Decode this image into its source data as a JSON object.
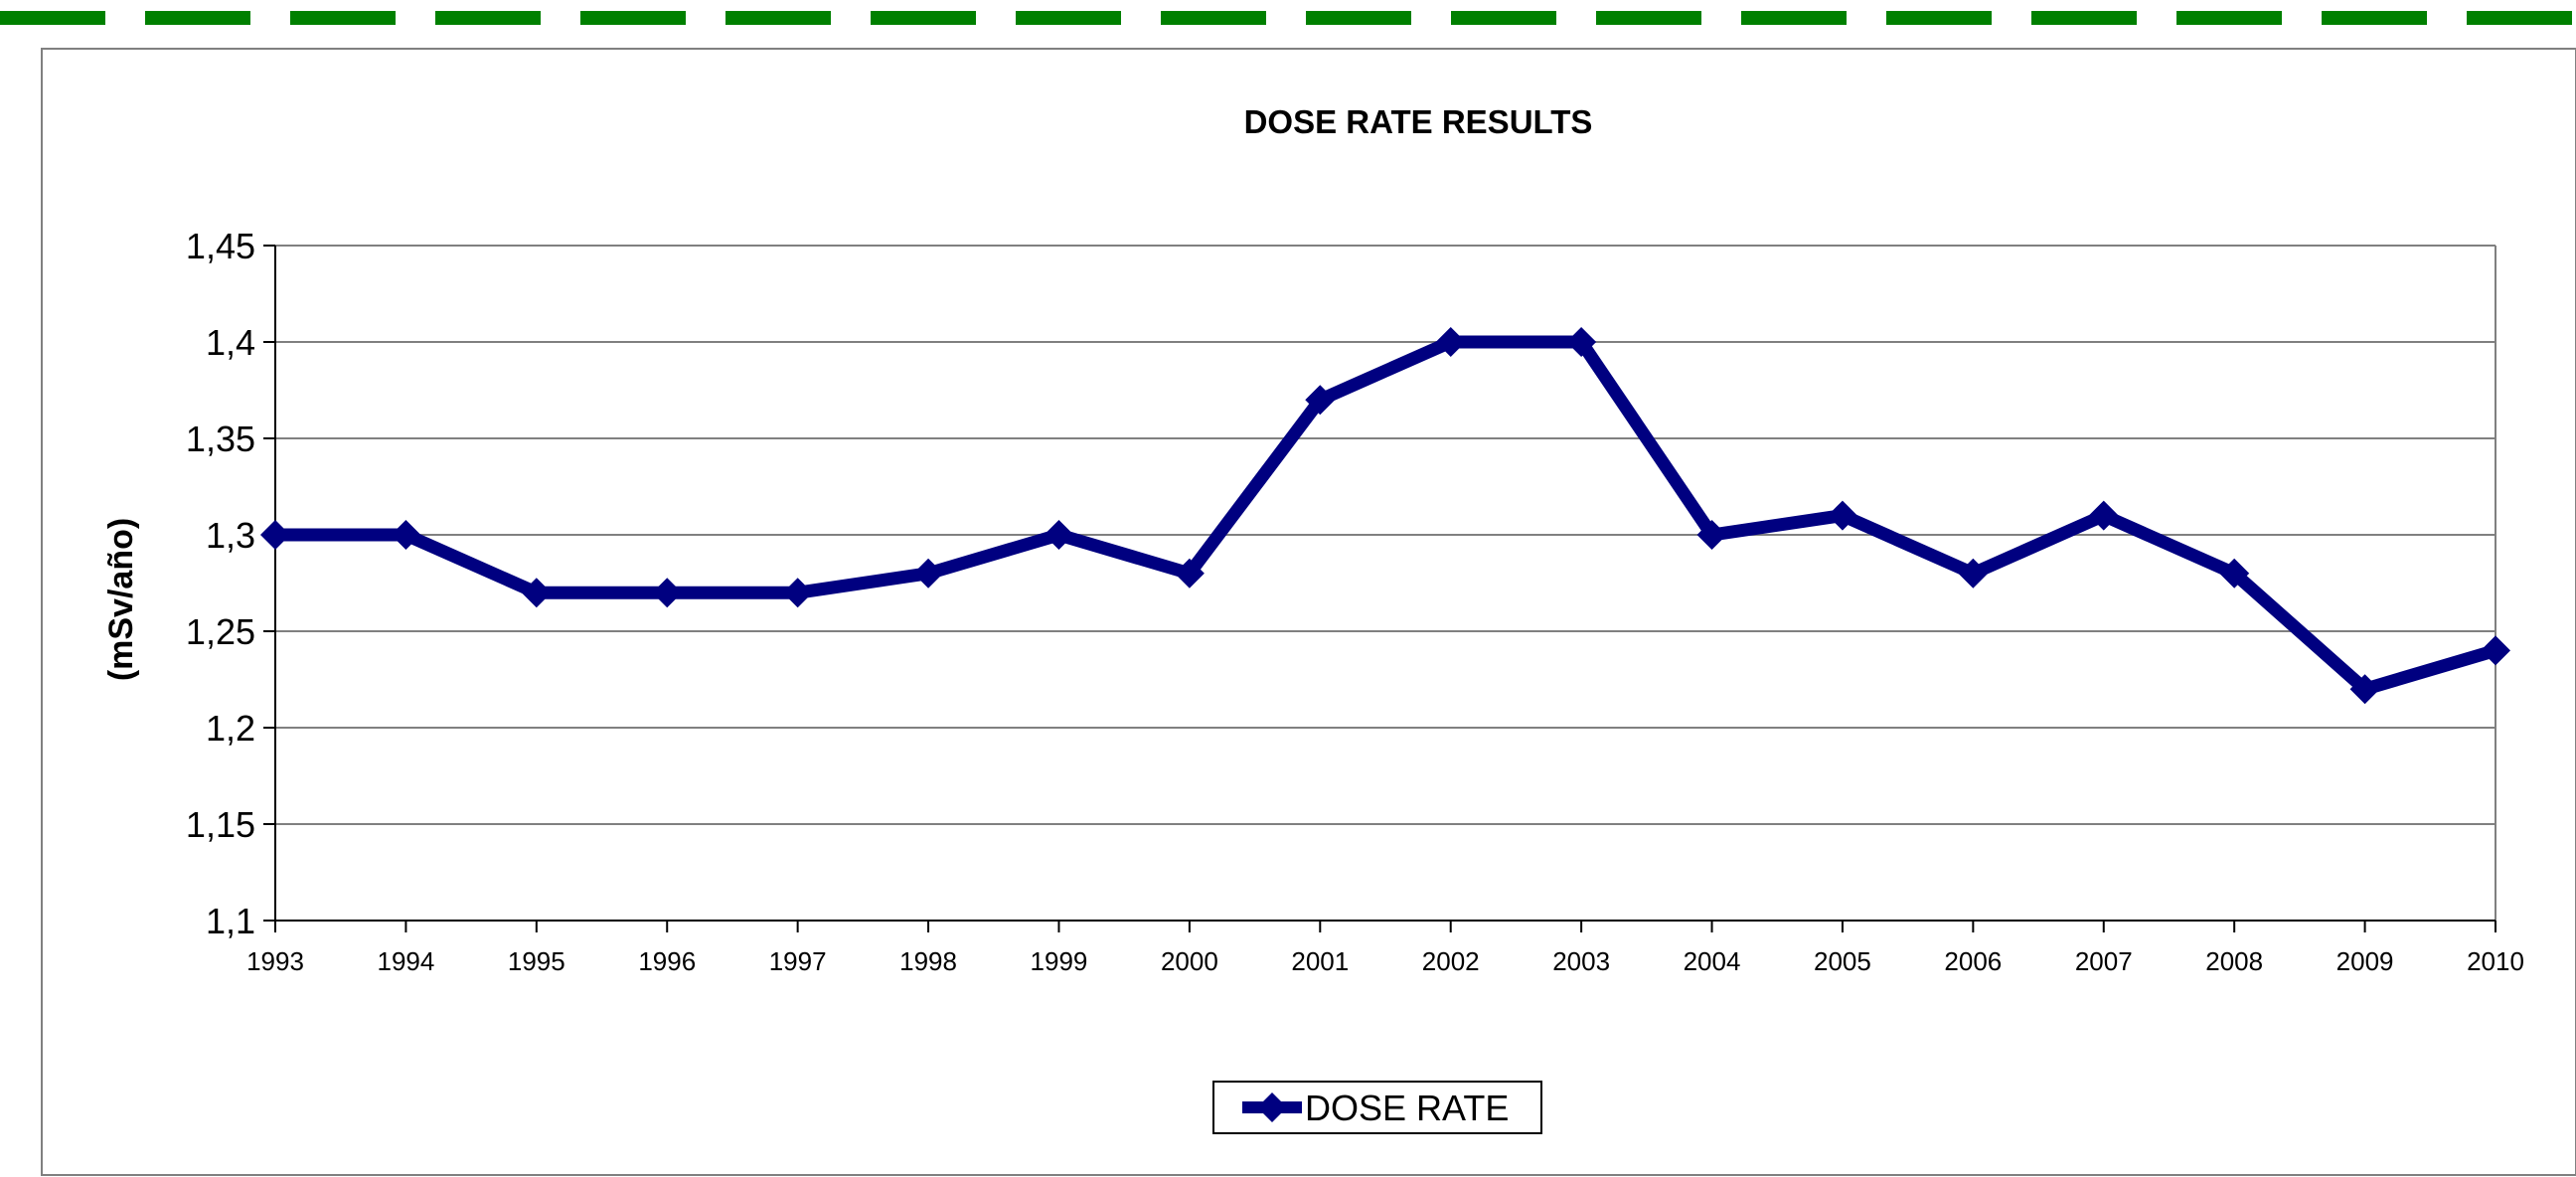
{
  "colors": {
    "header_dash": "#008000",
    "series_line": "#000080",
    "frame": "#808080",
    "grid": "#808080"
  },
  "chart_data": {
    "type": "line",
    "title": "DOSE RATE RESULTS",
    "xlabel": "",
    "ylabel": "(mSv/año)",
    "x": [
      "1993",
      "1994",
      "1995",
      "1996",
      "1997",
      "1998",
      "1999",
      "2000",
      "2001",
      "2002",
      "2003",
      "2004",
      "2005",
      "2006",
      "2007",
      "2008",
      "2009",
      "2010"
    ],
    "series": [
      {
        "name": "DOSE RATE",
        "values": [
          1.3,
          1.3,
          1.27,
          1.27,
          1.27,
          1.28,
          1.3,
          1.28,
          1.37,
          1.4,
          1.4,
          1.3,
          1.31,
          1.28,
          1.31,
          1.28,
          1.22,
          1.24
        ]
      }
    ],
    "ylim": [
      1.1,
      1.45
    ],
    "yticks": [
      "1,1",
      "1,15",
      "1,2",
      "1,25",
      "1,3",
      "1,35",
      "1,4",
      "1,45"
    ],
    "grid": true,
    "legend_position": "bottom-center"
  }
}
